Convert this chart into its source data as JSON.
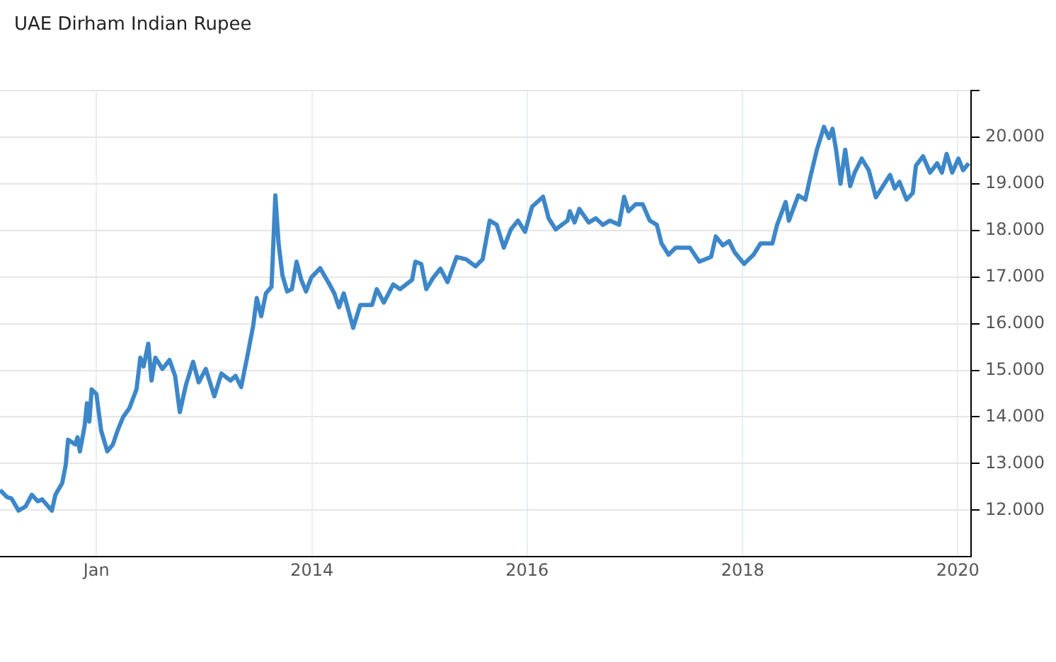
{
  "chart_data": {
    "type": "line",
    "title": "UAE Dirham Indian Rupee",
    "x": [
      "2011-02-08",
      "2011-03-04",
      "2011-03-19",
      "2011-04-12",
      "2011-05-06",
      "2011-05-27",
      "2011-06-16",
      "2011-07-01",
      "2011-08-03",
      "2011-08-15",
      "2011-09-07",
      "2011-09-19",
      "2011-09-27",
      "2011-10-21",
      "2011-10-29",
      "2011-11-06",
      "2011-11-22",
      "2011-11-30",
      "2011-12-08",
      "2011-12-16",
      "2012-01-01",
      "2012-01-17",
      "2012-02-07",
      "2012-02-26",
      "2012-03-13",
      "2012-04-01",
      "2012-04-22",
      "2012-05-16",
      "2012-05-29",
      "2012-06-09",
      "2012-06-25",
      "2012-07-06",
      "2012-07-19",
      "2012-08-12",
      "2012-09-05",
      "2012-09-24",
      "2012-10-10",
      "2012-10-31",
      "2012-11-24",
      "2012-12-13",
      "2013-01-06",
      "2013-02-04",
      "2013-02-28",
      "2013-03-31",
      "2013-04-17",
      "2013-05-06",
      "2013-05-26",
      "2013-06-16",
      "2013-06-28",
      "2013-07-13",
      "2013-07-29",
      "2013-08-17",
      "2013-08-22",
      "2013-08-30",
      "2013-09-10",
      "2013-09-23",
      "2013-10-09",
      "2013-10-25",
      "2013-11-10",
      "2013-11-26",
      "2013-12-12",
      "2013-12-30",
      "2014-01-29",
      "2014-03-02",
      "2014-03-18",
      "2014-04-03",
      "2014-04-19",
      "2014-05-21",
      "2014-06-14",
      "2014-07-24",
      "2014-08-09",
      "2014-09-02",
      "2014-10-04",
      "2014-10-27",
      "2014-12-07",
      "2014-12-18",
      "2015-01-07",
      "2015-01-24",
      "2015-02-17",
      "2015-03-13",
      "2015-04-06",
      "2015-05-07",
      "2015-06-08",
      "2015-07-10",
      "2015-08-03",
      "2015-08-27",
      "2015-09-20",
      "2015-10-14",
      "2015-11-07",
      "2015-12-01",
      "2015-12-25",
      "2016-01-18",
      "2016-02-24",
      "2016-03-14",
      "2016-04-07",
      "2016-05-17",
      "2016-05-25",
      "2016-06-10",
      "2016-06-26",
      "2016-07-28",
      "2016-08-21",
      "2016-09-14",
      "2016-10-08",
      "2016-11-08",
      "2016-11-25",
      "2016-12-10",
      "2017-01-03",
      "2017-01-27",
      "2017-02-20",
      "2017-03-16",
      "2017-04-01",
      "2017-04-25",
      "2017-05-19",
      "2017-07-06",
      "2017-08-07",
      "2017-09-16",
      "2017-10-02",
      "2017-10-26",
      "2017-11-16",
      "2017-12-05",
      "2018-01-06",
      "2018-02-07",
      "2018-03-03",
      "2018-04-12",
      "2018-04-28",
      "2018-05-27",
      "2018-06-07",
      "2018-07-09",
      "2018-08-02",
      "2018-08-17",
      "2018-09-10",
      "2018-10-04",
      "2018-10-21",
      "2018-11-02",
      "2018-11-14",
      "2018-11-29",
      "2018-12-15",
      "2019-01-01",
      "2019-01-16",
      "2019-02-09",
      "2019-03-05",
      "2019-03-29",
      "2019-04-22",
      "2019-05-16",
      "2019-06-01",
      "2019-06-17",
      "2019-07-11",
      "2019-08-01",
      "2019-08-12",
      "2019-09-05",
      "2019-09-29",
      "2019-10-23",
      "2019-11-08",
      "2019-11-24",
      "2019-12-13",
      "2020-01-03",
      "2020-01-19",
      "2020-02-07"
    ],
    "series": [
      {
        "color": "#3d87c9",
        "values": [
          12.43,
          12.28,
          12.25,
          11.99,
          12.08,
          12.33,
          12.19,
          12.23,
          11.99,
          12.33,
          12.58,
          12.97,
          13.51,
          13.41,
          13.56,
          13.26,
          13.8,
          14.29,
          13.9,
          14.59,
          14.49,
          13.71,
          13.26,
          13.41,
          13.71,
          14.0,
          14.19,
          14.59,
          15.27,
          15.08,
          15.57,
          14.78,
          15.27,
          15.03,
          15.22,
          14.88,
          14.1,
          14.69,
          15.18,
          14.74,
          15.03,
          14.44,
          14.93,
          14.78,
          14.88,
          14.64,
          15.27,
          15.96,
          16.55,
          16.16,
          16.65,
          16.79,
          17.53,
          18.75,
          17.72,
          17.04,
          16.69,
          16.74,
          17.33,
          16.94,
          16.69,
          16.99,
          17.19,
          16.84,
          16.65,
          16.35,
          16.65,
          15.91,
          16.4,
          16.4,
          16.74,
          16.45,
          16.84,
          16.74,
          16.94,
          17.33,
          17.28,
          16.74,
          16.99,
          17.18,
          16.89,
          17.43,
          17.38,
          17.23,
          17.38,
          18.21,
          18.12,
          17.63,
          18.02,
          18.21,
          17.97,
          18.51,
          18.72,
          18.26,
          18.02,
          18.21,
          18.41,
          18.17,
          18.46,
          18.17,
          18.26,
          18.12,
          18.21,
          18.12,
          18.72,
          18.41,
          18.56,
          18.56,
          18.21,
          18.12,
          17.72,
          17.48,
          17.63,
          17.63,
          17.33,
          17.43,
          17.87,
          17.68,
          17.77,
          17.53,
          17.28,
          17.48,
          17.72,
          17.72,
          18.12,
          18.61,
          18.21,
          18.75,
          18.66,
          19.1,
          19.73,
          20.22,
          19.98,
          20.18,
          19.73,
          19.0,
          19.73,
          18.95,
          19.24,
          19.54,
          19.29,
          18.71,
          18.95,
          19.19,
          18.9,
          19.04,
          18.66,
          18.8,
          19.39,
          19.59,
          19.24,
          19.44,
          19.24,
          19.64,
          19.24,
          19.54,
          19.29,
          19.44
        ]
      }
    ],
    "xlim": [
      "2011-02-08",
      "2020-02-15"
    ],
    "xticks": [
      {
        "value": "2012-01-01",
        "label": "Jan"
      },
      {
        "value": "2014-01-01",
        "label": "2014"
      },
      {
        "value": "2016-01-01",
        "label": "2016"
      },
      {
        "value": "2018-01-01",
        "label": "2018"
      },
      {
        "value": "2020-01-01",
        "label": "2020"
      }
    ],
    "ylim": [
      11,
      21
    ],
    "yticks": [
      {
        "value": 12,
        "label": "12.000"
      },
      {
        "value": 13,
        "label": "13.000"
      },
      {
        "value": 14,
        "label": "14.000"
      },
      {
        "value": 15,
        "label": "15.000"
      },
      {
        "value": 16,
        "label": "16.000"
      },
      {
        "value": 17,
        "label": "17.000"
      },
      {
        "value": 18,
        "label": "18.000"
      },
      {
        "value": 19,
        "label": "19.000"
      },
      {
        "value": 20,
        "label": "20.000"
      },
      {
        "value": 21,
        "label": null
      }
    ],
    "grid": true,
    "legend": false
  }
}
